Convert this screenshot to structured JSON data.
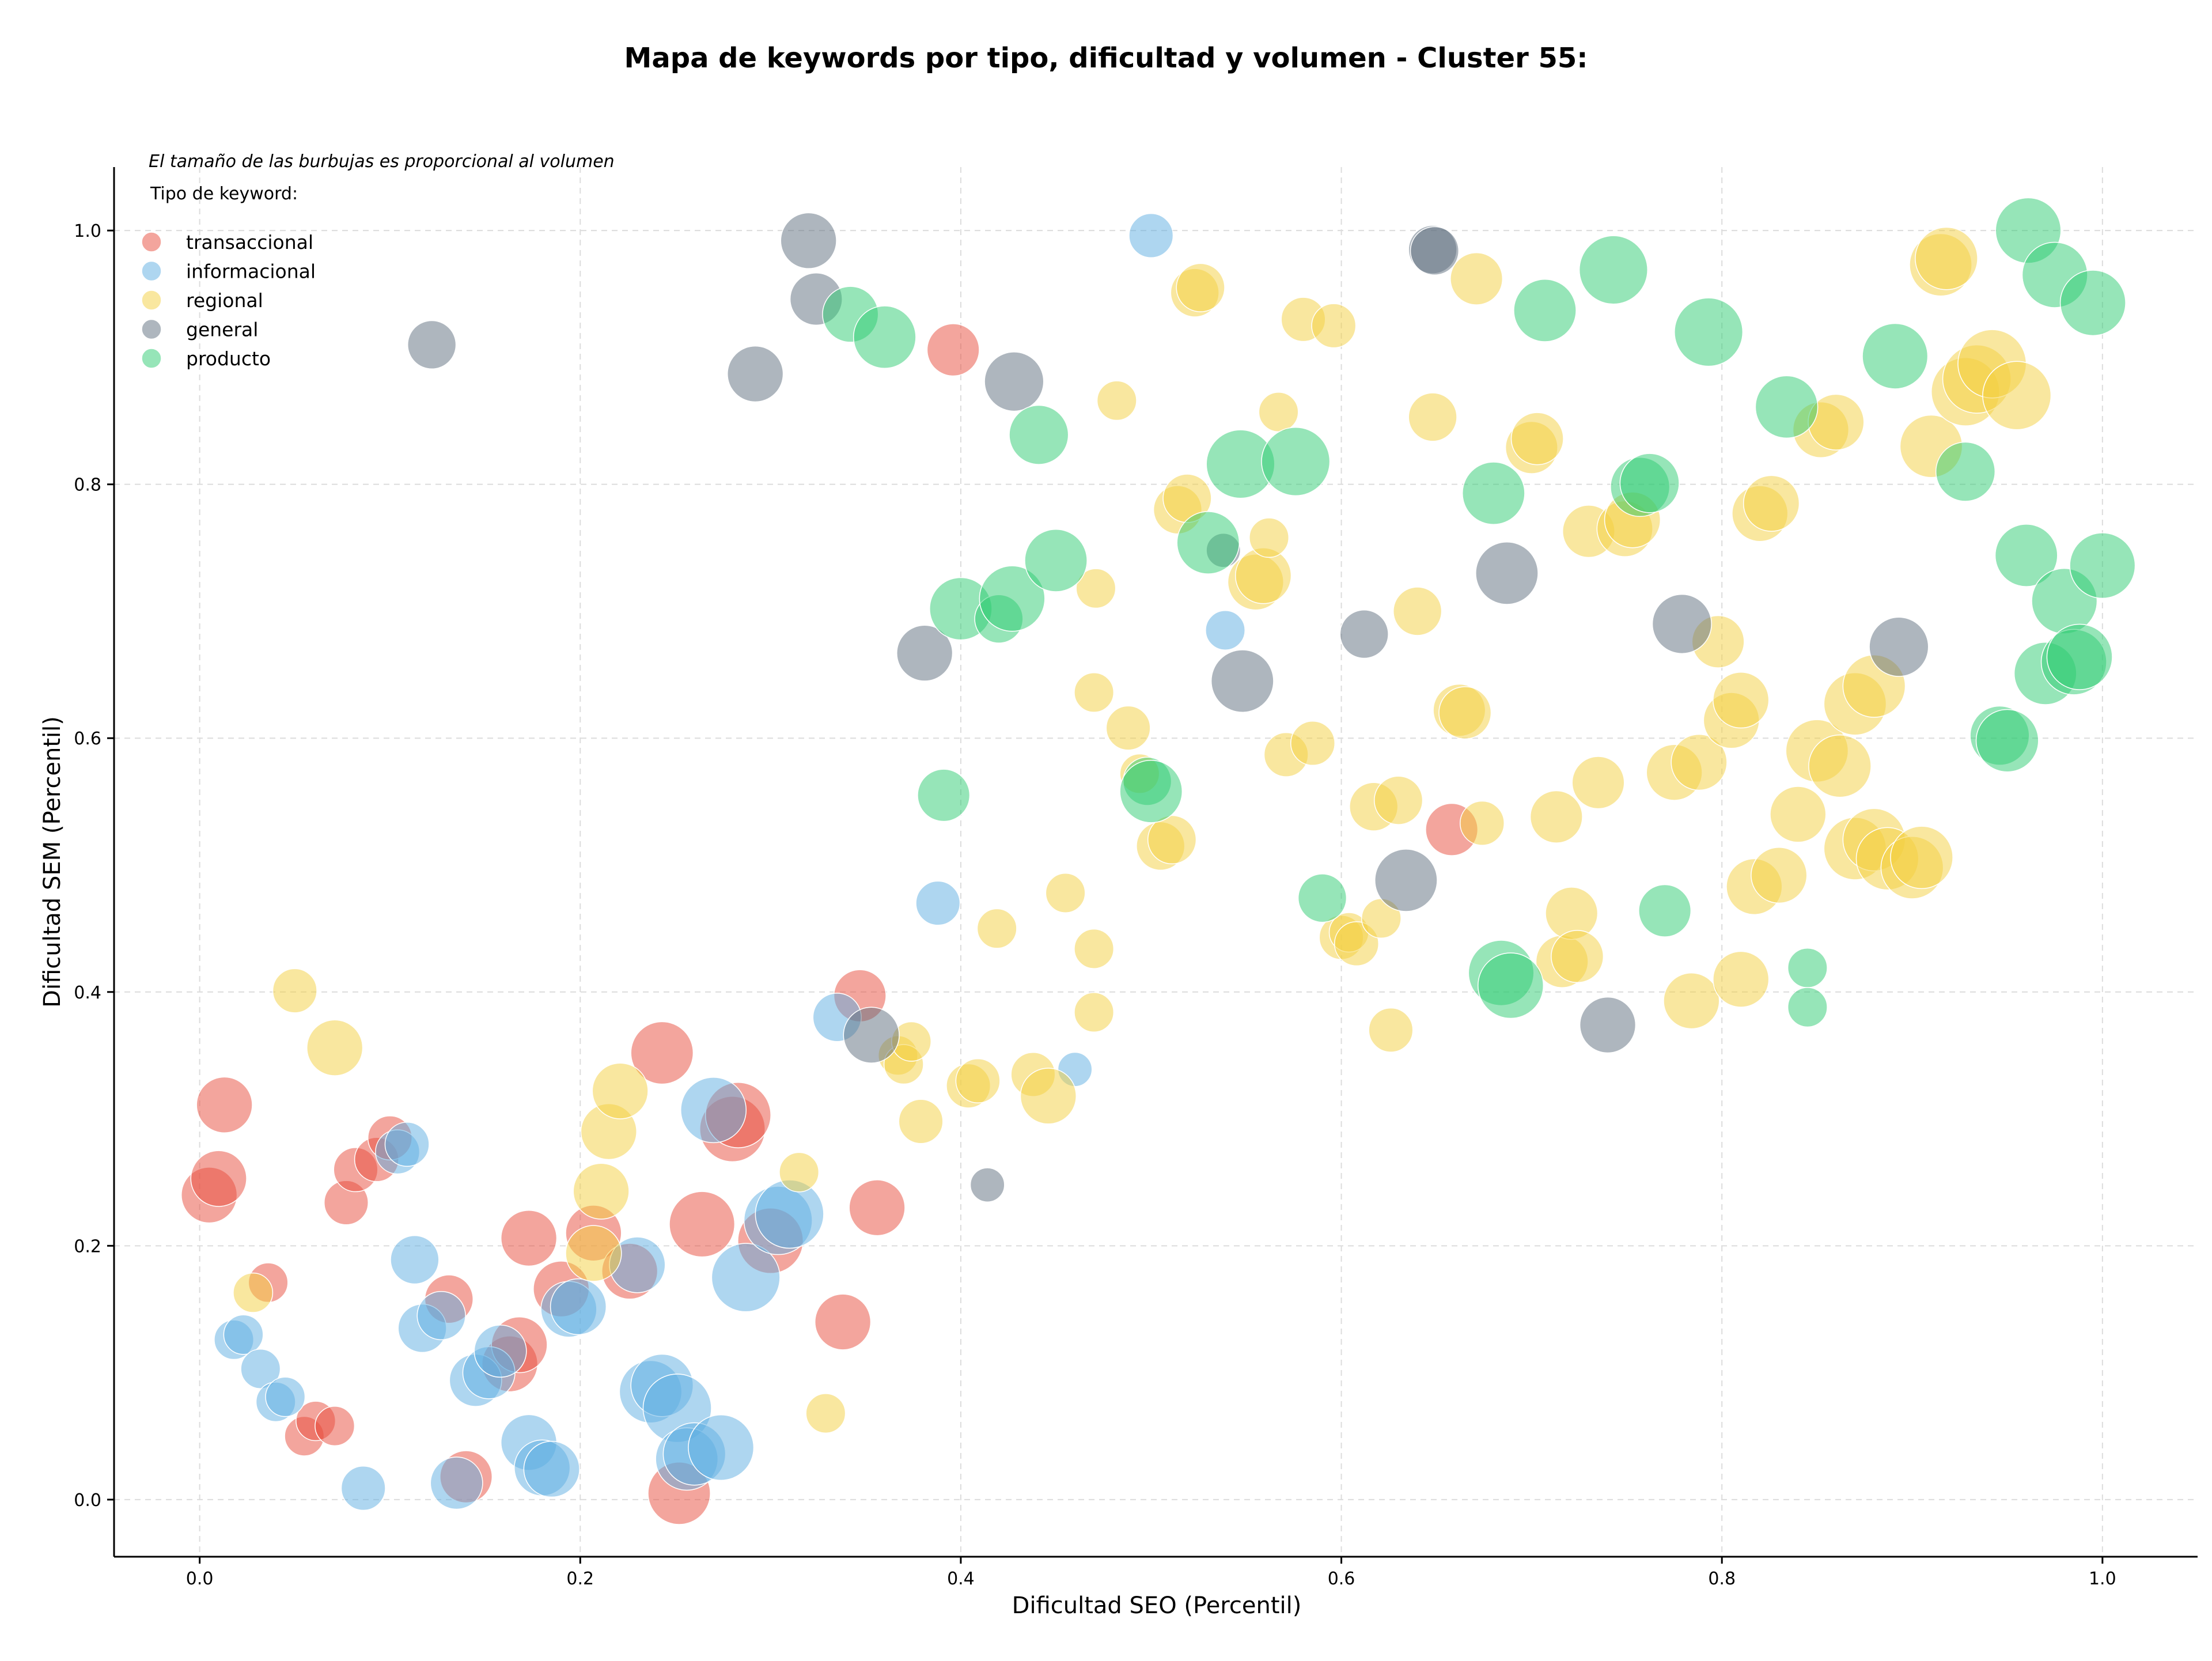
{
  "chart_data": {
    "type": "scatter",
    "title": "Mapa de keywords por tipo, dificultad y volumen - Cluster 55:",
    "xlabel": "Dificultad SEO (Percentil)",
    "ylabel": "Dificultad SEM (Percentil)",
    "note": "El tamaño de las burbujas es proporcional al volumen",
    "legend_title": "Tipo de keyword:",
    "legend_position": "top-left",
    "xlim": [
      -0.045,
      1.05
    ],
    "ylim": [
      -0.045,
      1.05
    ],
    "xticks": [
      "0.0",
      "0.2",
      "0.4",
      "0.6",
      "0.8",
      "1.0"
    ],
    "yticks": [
      "0.0",
      "0.2",
      "0.4",
      "0.6",
      "0.8",
      "1.0"
    ],
    "grid": true,
    "series": [
      {
        "name": "transaccional",
        "color": "#e74c3c",
        "points": [
          [
            0.005,
            0.24,
            4
          ],
          [
            0.01,
            0.253,
            4
          ],
          [
            0.013,
            0.311,
            4
          ],
          [
            0.036,
            0.171,
            2
          ],
          [
            0.055,
            0.05,
            2
          ],
          [
            0.061,
            0.062,
            2
          ],
          [
            0.071,
            0.058,
            2
          ],
          [
            0.077,
            0.234,
            2.5
          ],
          [
            0.082,
            0.26,
            2.5
          ],
          [
            0.093,
            0.268,
            2.5
          ],
          [
            0.1,
            0.285,
            2.5
          ],
          [
            0.131,
            0.158,
            3
          ],
          [
            0.14,
            0.018,
            3.5
          ],
          [
            0.163,
            0.107,
            4
          ],
          [
            0.168,
            0.122,
            4
          ],
          [
            0.173,
            0.206,
            4
          ],
          [
            0.19,
            0.166,
            4
          ],
          [
            0.207,
            0.21,
            4
          ],
          [
            0.226,
            0.18,
            4
          ],
          [
            0.243,
            0.352,
            5
          ],
          [
            0.252,
            0.005,
            5
          ],
          [
            0.264,
            0.217,
            5.5
          ],
          [
            0.28,
            0.292,
            5.5
          ],
          [
            0.283,
            0.303,
            5.5
          ],
          [
            0.3,
            0.204,
            5.5
          ],
          [
            0.338,
            0.14,
            4
          ],
          [
            0.347,
            0.397,
            3.5
          ],
          [
            0.356,
            0.23,
            4
          ],
          [
            0.396,
            0.906,
            3.5
          ],
          [
            0.658,
            0.528,
            3.5
          ]
        ]
      },
      {
        "name": "informacional",
        "color": "#5dade2",
        "points": [
          [
            0.018,
            0.126,
            2
          ],
          [
            0.023,
            0.13,
            2
          ],
          [
            0.032,
            0.103,
            2
          ],
          [
            0.04,
            0.077,
            2
          ],
          [
            0.045,
            0.081,
            2
          ],
          [
            0.086,
            0.009,
            2.5
          ],
          [
            0.104,
            0.274,
            2.5
          ],
          [
            0.109,
            0.28,
            2.5
          ],
          [
            0.113,
            0.189,
            3
          ],
          [
            0.117,
            0.135,
            3
          ],
          [
            0.127,
            0.145,
            3
          ],
          [
            0.135,
            0.013,
            3.5
          ],
          [
            0.145,
            0.094,
            3.5
          ],
          [
            0.152,
            0.1,
            3.5
          ],
          [
            0.158,
            0.117,
            3.5
          ],
          [
            0.173,
            0.045,
            4
          ],
          [
            0.18,
            0.025,
            4
          ],
          [
            0.185,
            0.024,
            4
          ],
          [
            0.194,
            0.15,
            4
          ],
          [
            0.199,
            0.152,
            4
          ],
          [
            0.23,
            0.185,
            4
          ],
          [
            0.237,
            0.085,
            5
          ],
          [
            0.243,
            0.09,
            5
          ],
          [
            0.251,
            0.072,
            6
          ],
          [
            0.256,
            0.032,
            5
          ],
          [
            0.26,
            0.036,
            5
          ],
          [
            0.27,
            0.307,
            5.5
          ],
          [
            0.274,
            0.041,
            5.5
          ],
          [
            0.287,
            0.175,
            6
          ],
          [
            0.304,
            0.22,
            6
          ],
          [
            0.31,
            0.225,
            6
          ],
          [
            0.335,
            0.38,
            3
          ],
          [
            0.388,
            0.47,
            2.5
          ],
          [
            0.46,
            0.339,
            1.5
          ],
          [
            0.5,
            0.996,
            2.5
          ],
          [
            0.539,
            0.685,
            2
          ]
        ]
      },
      {
        "name": "regional",
        "color": "#f4d03f",
        "points": [
          [
            0.028,
            0.163,
            2
          ],
          [
            0.05,
            0.401,
            2.5
          ],
          [
            0.071,
            0.356,
            4
          ],
          [
            0.207,
            0.194,
            4
          ],
          [
            0.211,
            0.243,
            4
          ],
          [
            0.215,
            0.29,
            4
          ],
          [
            0.221,
            0.322,
            4
          ],
          [
            0.315,
            0.258,
            2
          ],
          [
            0.329,
            0.068,
            2
          ],
          [
            0.367,
            0.35,
            2
          ],
          [
            0.37,
            0.343,
            2
          ],
          [
            0.374,
            0.361,
            2
          ],
          [
            0.379,
            0.298,
            2.5
          ],
          [
            0.404,
            0.326,
            2.5
          ],
          [
            0.409,
            0.33,
            2.5
          ],
          [
            0.419,
            0.45,
            2
          ],
          [
            0.438,
            0.335,
            2.5
          ],
          [
            0.446,
            0.318,
            4
          ],
          [
            0.455,
            0.478,
            2
          ],
          [
            0.47,
            0.434,
            2
          ],
          [
            0.47,
            0.384,
            2
          ],
          [
            0.47,
            0.636,
            2
          ],
          [
            0.471,
            0.718,
            2
          ],
          [
            0.482,
            0.866,
            2
          ],
          [
            0.488,
            0.608,
            2.5
          ],
          [
            0.494,
            0.572,
            2
          ],
          [
            0.505,
            0.515,
            3
          ],
          [
            0.511,
            0.52,
            3
          ],
          [
            0.514,
            0.78,
            3
          ],
          [
            0.519,
            0.789,
            3
          ],
          [
            0.523,
            0.951,
            3
          ],
          [
            0.526,
            0.955,
            3
          ],
          [
            0.555,
            0.723,
            4
          ],
          [
            0.559,
            0.728,
            4
          ],
          [
            0.562,
            0.758,
            2
          ],
          [
            0.567,
            0.857,
            2
          ],
          [
            0.571,
            0.587,
            2.5
          ],
          [
            0.58,
            0.93,
            2.5
          ],
          [
            0.585,
            0.596,
            2.5
          ],
          [
            0.596,
            0.925,
            2.5
          ],
          [
            0.6,
            0.443,
            2.5
          ],
          [
            0.604,
            0.447,
            2
          ],
          [
            0.608,
            0.438,
            2.5
          ],
          [
            0.617,
            0.546,
            3
          ],
          [
            0.621,
            0.458,
            2
          ],
          [
            0.626,
            0.37,
            2.5
          ],
          [
            0.63,
            0.551,
            3
          ],
          [
            0.64,
            0.7,
            3
          ],
          [
            0.648,
            0.853,
            3
          ],
          [
            0.662,
            0.622,
            3.5
          ],
          [
            0.665,
            0.62,
            3.5
          ],
          [
            0.671,
            0.962,
            3.5
          ],
          [
            0.674,
            0.533,
            2.5
          ],
          [
            0.7,
            0.829,
            3.5
          ],
          [
            0.703,
            0.836,
            3.5
          ],
          [
            0.713,
            0.538,
            3.5
          ],
          [
            0.716,
            0.424,
            3.5
          ],
          [
            0.721,
            0.462,
            3.5
          ],
          [
            0.724,
            0.428,
            3.5
          ],
          [
            0.73,
            0.763,
            3.5
          ],
          [
            0.735,
            0.565,
            3.5
          ],
          [
            0.749,
            0.765,
            4
          ],
          [
            0.753,
            0.772,
            4
          ],
          [
            0.775,
            0.573,
            4
          ],
          [
            0.784,
            0.393,
            4
          ],
          [
            0.788,
            0.581,
            4
          ],
          [
            0.798,
            0.676,
            3.5
          ],
          [
            0.805,
            0.614,
            4
          ],
          [
            0.81,
            0.63,
            4
          ],
          [
            0.81,
            0.41,
            4
          ],
          [
            0.817,
            0.483,
            4
          ],
          [
            0.82,
            0.777,
            4
          ],
          [
            0.826,
            0.785,
            4
          ],
          [
            0.83,
            0.492,
            4
          ],
          [
            0.84,
            0.54,
            4
          ],
          [
            0.85,
            0.59,
            5
          ],
          [
            0.852,
            0.843,
            4
          ],
          [
            0.86,
            0.849,
            4
          ],
          [
            0.862,
            0.578,
            5
          ],
          [
            0.87,
            0.627,
            5
          ],
          [
            0.87,
            0.513,
            5
          ],
          [
            0.88,
            0.641,
            5
          ],
          [
            0.88,
            0.52,
            5
          ],
          [
            0.887,
            0.505,
            5
          ],
          [
            0.9,
            0.498,
            5
          ],
          [
            0.905,
            0.506,
            5
          ],
          [
            0.91,
            0.83,
            5
          ],
          [
            0.915,
            0.973,
            5
          ],
          [
            0.918,
            0.978,
            5
          ],
          [
            0.928,
            0.873,
            6
          ],
          [
            0.934,
            0.883,
            6
          ],
          [
            0.942,
            0.895,
            6
          ],
          [
            0.955,
            0.87,
            6
          ]
        ]
      },
      {
        "name": "general",
        "color": "#5d6d7e",
        "points": [
          [
            0.122,
            0.91,
            3
          ],
          [
            0.292,
            0.887,
            4
          ],
          [
            0.32,
            0.992,
            4
          ],
          [
            0.324,
            0.946,
            3.5
          ],
          [
            0.353,
            0.366,
            4
          ],
          [
            0.381,
            0.667,
            4
          ],
          [
            0.414,
            0.248,
            1.5
          ],
          [
            0.428,
            0.881,
            4.5
          ],
          [
            0.538,
            0.748,
            1.5
          ],
          [
            0.548,
            0.645,
            5
          ],
          [
            0.612,
            0.682,
            3
          ],
          [
            0.634,
            0.488,
            5
          ],
          [
            0.648,
            0.985,
            3
          ],
          [
            0.649,
            0.984,
            3
          ],
          [
            0.687,
            0.73,
            5
          ],
          [
            0.74,
            0.374,
            4
          ],
          [
            0.779,
            0.69,
            4.5
          ],
          [
            0.893,
            0.672,
            4.5
          ]
        ]
      },
      {
        "name": "producto",
        "color": "#2ecc71",
        "points": [
          [
            0.342,
            0.934,
            4
          ],
          [
            0.36,
            0.916,
            5
          ],
          [
            0.391,
            0.555,
            3.5
          ],
          [
            0.4,
            0.702,
            5
          ],
          [
            0.42,
            0.694,
            3
          ],
          [
            0.427,
            0.71,
            5.5
          ],
          [
            0.441,
            0.839,
            4.5
          ],
          [
            0.45,
            0.74,
            5
          ],
          [
            0.498,
            0.566,
            3
          ],
          [
            0.5,
            0.558,
            5
          ],
          [
            0.53,
            0.754,
            5
          ],
          [
            0.547,
            0.816,
            6
          ],
          [
            0.576,
            0.818,
            6
          ],
          [
            0.59,
            0.474,
            3
          ],
          [
            0.68,
            0.793,
            5
          ],
          [
            0.684,
            0.415,
            5.5
          ],
          [
            0.689,
            0.405,
            5.5
          ],
          [
            0.707,
            0.937,
            5
          ],
          [
            0.743,
            0.969,
            6
          ],
          [
            0.757,
            0.798,
            4.5
          ],
          [
            0.762,
            0.801,
            4.5
          ],
          [
            0.77,
            0.464,
            3.5
          ],
          [
            0.793,
            0.92,
            6
          ],
          [
            0.834,
            0.861,
            5
          ],
          [
            0.845,
            0.419,
            2
          ],
          [
            0.845,
            0.388,
            2
          ],
          [
            0.891,
            0.901,
            5.5
          ],
          [
            0.928,
            0.81,
            4.5
          ],
          [
            0.946,
            0.602,
            4.5
          ],
          [
            0.95,
            0.598,
            5
          ],
          [
            0.96,
            0.744,
            5
          ],
          [
            0.961,
            1.0,
            5.5
          ],
          [
            0.97,
            0.651,
            5
          ],
          [
            0.975,
            0.965,
            5.5
          ],
          [
            0.98,
            0.708,
            5.5
          ],
          [
            0.985,
            0.66,
            5.5
          ],
          [
            0.988,
            0.664,
            5.5
          ],
          [
            0.995,
            0.943,
            5.5
          ],
          [
            1.0,
            0.736,
            5.5
          ]
        ]
      }
    ]
  }
}
